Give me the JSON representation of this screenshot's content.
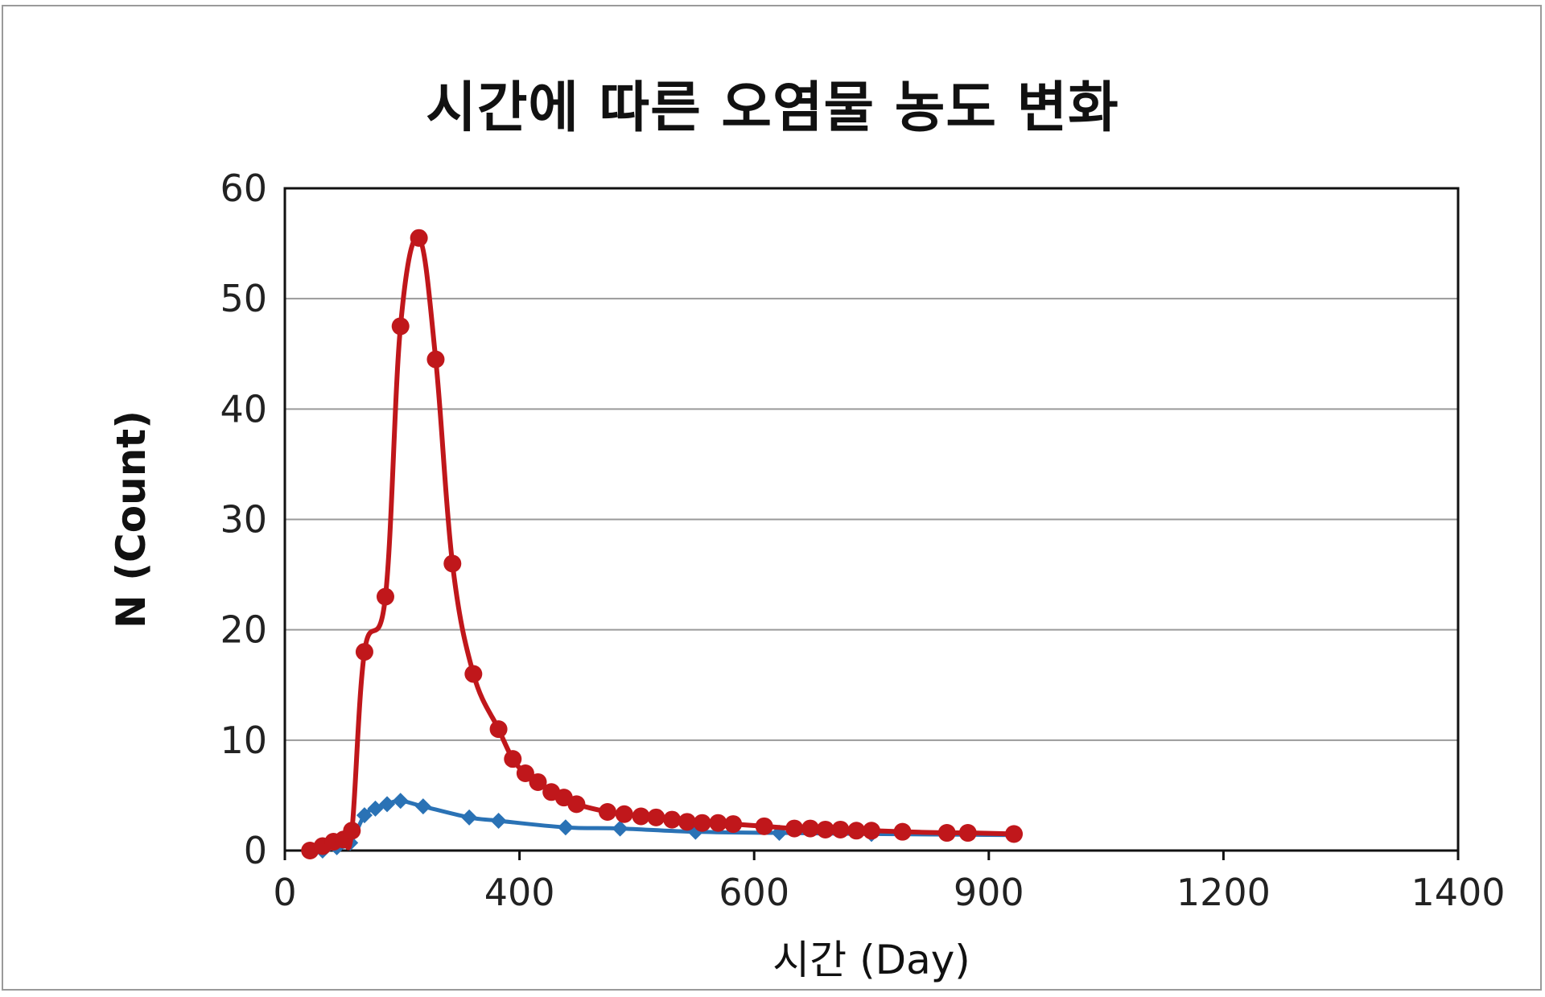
{
  "chart_data": {
    "type": "line",
    "title": "시간에 따른 오염물 농도 변화",
    "xlabel": "시간 (Day)",
    "ylabel": "N (Count)",
    "y_ticks": [
      "0",
      "10",
      "20",
      "30",
      "40",
      "50",
      "60"
    ],
    "x_ticks": [
      "0",
      "400",
      "600",
      "900",
      "1200",
      "1400"
    ],
    "ylim": [
      0,
      60
    ],
    "grid": true,
    "series": [
      {
        "color": "#c0171b",
        "marker": "circle",
        "points": [
          {
            "x": 30,
            "y": 0
          },
          {
            "x": 45,
            "y": 0.4
          },
          {
            "x": 58,
            "y": 0.8
          },
          {
            "x": 70,
            "y": 1.0
          },
          {
            "x": 80,
            "y": 1.8
          },
          {
            "x": 95,
            "y": 18
          },
          {
            "x": 120,
            "y": 23
          },
          {
            "x": 138,
            "y": 47.5
          },
          {
            "x": 160,
            "y": 55.5
          },
          {
            "x": 180,
            "y": 44.5
          },
          {
            "x": 200,
            "y": 26
          },
          {
            "x": 225,
            "y": 16
          },
          {
            "x": 255,
            "y": 11
          },
          {
            "x": 272,
            "y": 8.3
          },
          {
            "x": 287,
            "y": 7.0
          },
          {
            "x": 302,
            "y": 6.2
          },
          {
            "x": 318,
            "y": 5.3
          },
          {
            "x": 333,
            "y": 4.8
          },
          {
            "x": 348,
            "y": 4.2
          },
          {
            "x": 385,
            "y": 3.5
          },
          {
            "x": 405,
            "y": 3.3
          },
          {
            "x": 425,
            "y": 3.1
          },
          {
            "x": 443,
            "y": 3.0
          },
          {
            "x": 462,
            "y": 2.8
          },
          {
            "x": 480,
            "y": 2.6
          },
          {
            "x": 498,
            "y": 2.5
          },
          {
            "x": 517,
            "y": 2.5
          },
          {
            "x": 535,
            "y": 2.4
          },
          {
            "x": 572,
            "y": 2.2
          },
          {
            "x": 608,
            "y": 2.0
          },
          {
            "x": 627,
            "y": 2.0
          },
          {
            "x": 645,
            "y": 1.9
          },
          {
            "x": 663,
            "y": 1.9
          },
          {
            "x": 682,
            "y": 1.8
          },
          {
            "x": 700,
            "y": 1.8
          },
          {
            "x": 737,
            "y": 1.7
          },
          {
            "x": 790,
            "y": 1.6
          },
          {
            "x": 815,
            "y": 1.6
          },
          {
            "x": 870,
            "y": 1.5
          }
        ]
      },
      {
        "color": "#2a72b5",
        "marker": "diamond",
        "points": [
          {
            "x": 45,
            "y": 0
          },
          {
            "x": 62,
            "y": 0.3
          },
          {
            "x": 78,
            "y": 0.7
          },
          {
            "x": 95,
            "y": 3.2
          },
          {
            "x": 108,
            "y": 3.8
          },
          {
            "x": 122,
            "y": 4.2
          },
          {
            "x": 138,
            "y": 4.5
          },
          {
            "x": 165,
            "y": 4.0
          },
          {
            "x": 220,
            "y": 3.0
          },
          {
            "x": 255,
            "y": 2.7
          },
          {
            "x": 335,
            "y": 2.1
          },
          {
            "x": 400,
            "y": 2.0
          },
          {
            "x": 490,
            "y": 1.7
          },
          {
            "x": 590,
            "y": 1.6
          },
          {
            "x": 700,
            "y": 1.5
          },
          {
            "x": 870,
            "y": 1.4
          }
        ]
      }
    ]
  }
}
